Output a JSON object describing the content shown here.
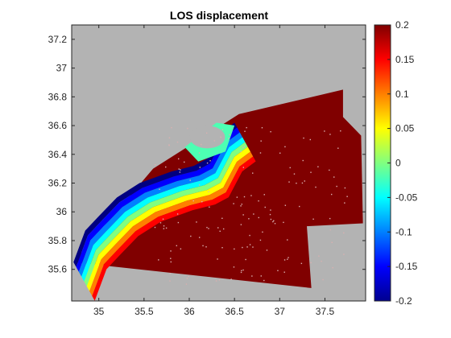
{
  "chart_data": {
    "type": "heatmap",
    "title": "LOS displacement",
    "xlabel": "",
    "ylabel": "",
    "x_ticks": [
      "35",
      "35.5",
      "36",
      "36.5",
      "37",
      "37.5"
    ],
    "x_tick_values": [
      35,
      35.5,
      36,
      36.5,
      37,
      37.5
    ],
    "y_ticks": [
      "35.6",
      "35.8",
      "36",
      "36.2",
      "36.4",
      "36.6",
      "36.8",
      "37",
      "37.2"
    ],
    "y_tick_values": [
      35.6,
      35.8,
      36,
      36.2,
      36.4,
      36.6,
      36.8,
      37,
      37.2
    ],
    "xlim": [
      34.7,
      37.95
    ],
    "ylim": [
      35.38,
      37.3
    ],
    "background_color": "#b3b3b3",
    "colorbar": {
      "colormap": "jet",
      "clim": [
        -0.2,
        0.2
      ],
      "ticks": [
        "0.2",
        "0.15",
        "0.1",
        "0.05",
        "0",
        "-0.05",
        "-0.1",
        "-0.15",
        "-0.2"
      ],
      "tick_values": [
        0.2,
        0.15,
        0.1,
        0.05,
        0,
        -0.05,
        -0.1,
        -0.15,
        -0.2
      ]
    },
    "field": {
      "footprint_lonlat": [
        [
          34.72,
          35.65
        ],
        [
          35.6,
          36.3
        ],
        [
          36.55,
          36.68
        ],
        [
          37.7,
          36.85
        ],
        [
          37.7,
          36.66
        ],
        [
          37.9,
          36.53
        ],
        [
          37.92,
          35.92
        ],
        [
          37.3,
          35.9
        ],
        [
          37.35,
          35.47
        ],
        [
          35.15,
          35.62
        ]
      ],
      "saturated_value": 0.2,
      "coastal_gradient": [
        -0.2,
        -0.15,
        -0.1,
        -0.05,
        0,
        0.05,
        0.1,
        0.15,
        0.2
      ],
      "bay_values": [
        -0.06,
        -0.02,
        0.02
      ],
      "coast_lonlat": [
        [
          34.72,
          35.65
        ],
        [
          34.85,
          35.87
        ],
        [
          35.0,
          35.97
        ],
        [
          35.2,
          36.1
        ],
        [
          35.45,
          36.2
        ],
        [
          35.8,
          36.28
        ],
        [
          36.05,
          36.32
        ],
        [
          36.2,
          36.37
        ],
        [
          36.35,
          36.55
        ],
        [
          36.5,
          36.62
        ]
      ]
    }
  }
}
